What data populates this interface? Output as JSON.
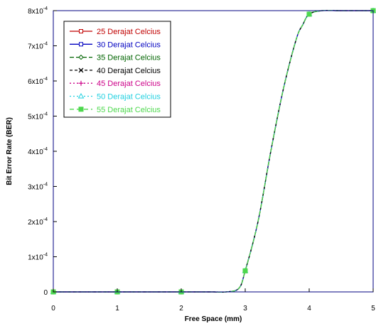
{
  "chart_data": {
    "type": "line",
    "xlabel": "Free Space (mm)",
    "ylabel": "Bit Error Rate (BER)",
    "xlim": [
      0,
      5
    ],
    "ylim": [
      0,
      8
    ],
    "y_unit_exponent_label": "x10",
    "y_exponent": "-4",
    "x_ticks": [
      "0",
      "1",
      "2",
      "3",
      "4",
      "5"
    ],
    "y_ticks": [
      "0",
      "1",
      "2",
      "3",
      "4",
      "5",
      "6",
      "7",
      "8"
    ],
    "grid": false,
    "legend_position": "top-left",
    "x": [
      0,
      0.5,
      1,
      1.5,
      2,
      2.5,
      2.7,
      2.9,
      3.0,
      3.2,
      3.4,
      3.6,
      3.8,
      3.9,
      4.0,
      4.2,
      4.5,
      5.0
    ],
    "series": [
      {
        "name": "25 Derajat Celcius",
        "color": "#c00000",
        "dash": "",
        "marker": "square-open",
        "values": [
          0,
          0,
          0,
          0,
          0,
          0,
          0,
          0.1,
          0.6,
          2.0,
          4.0,
          5.8,
          7.2,
          7.6,
          7.9,
          8.0,
          8.0,
          8.0
        ]
      },
      {
        "name": "30 Derajat Celcius",
        "color": "#0000c0",
        "dash": "",
        "marker": "square-open",
        "values": [
          0,
          0,
          0,
          0,
          0,
          0,
          0,
          0.1,
          0.6,
          2.0,
          4.0,
          5.8,
          7.2,
          7.6,
          7.9,
          8.0,
          8.0,
          8.0
        ]
      },
      {
        "name": "35 Derajat Celcius",
        "color": "#006400",
        "dash": "6,3",
        "marker": "diamond-open",
        "values": [
          0,
          0,
          0,
          0,
          0,
          0,
          0,
          0.1,
          0.6,
          2.0,
          4.0,
          5.8,
          7.2,
          7.6,
          7.9,
          8.0,
          8.0,
          8.0
        ]
      },
      {
        "name": "40 Derajat Celcius",
        "color": "#000000",
        "dash": "4,3",
        "marker": "x",
        "values": [
          0,
          0,
          0,
          0,
          0,
          0,
          0,
          0.1,
          0.6,
          2.0,
          4.0,
          5.8,
          7.2,
          7.6,
          7.9,
          8.0,
          8.0,
          8.0
        ]
      },
      {
        "name": "45 Derajat Celcius",
        "color": "#cc0088",
        "dash": "2,3",
        "marker": "plus",
        "values": [
          0,
          0,
          0,
          0,
          0,
          0,
          0,
          0.1,
          0.6,
          2.0,
          4.0,
          5.8,
          7.2,
          7.6,
          7.9,
          8.0,
          8.0,
          8.0
        ]
      },
      {
        "name": "50 Derajat Celcius",
        "color": "#20d0e0",
        "dash": "2,3",
        "marker": "triangle-open",
        "values": [
          0,
          0,
          0,
          0,
          0,
          0,
          0,
          0.1,
          0.6,
          2.0,
          4.0,
          5.8,
          7.2,
          7.6,
          7.9,
          8.0,
          8.0,
          8.0
        ]
      },
      {
        "name": "55 Derajat Celcius",
        "color": "#4dd84d",
        "dash": "6,4",
        "marker": "square-filled",
        "values": [
          0,
          0,
          0,
          0,
          0,
          0,
          0,
          0.1,
          0.6,
          2.0,
          4.0,
          5.8,
          7.2,
          7.6,
          7.9,
          8.0,
          8.0,
          8.0
        ]
      }
    ],
    "marker_x": [
      0,
      1,
      2,
      3,
      4,
      5
    ]
  }
}
